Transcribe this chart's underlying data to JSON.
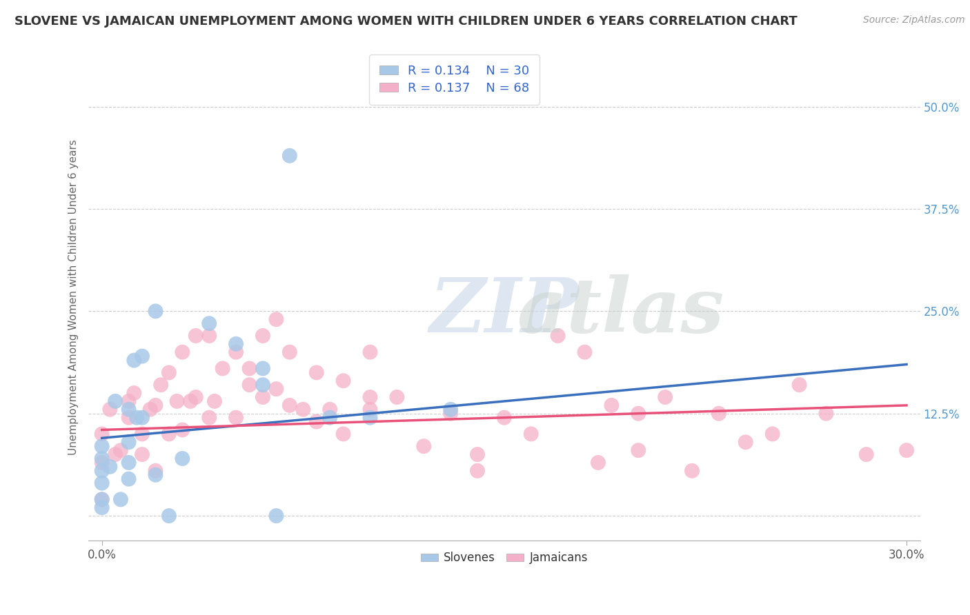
{
  "title": "SLOVENE VS JAMAICAN UNEMPLOYMENT AMONG WOMEN WITH CHILDREN UNDER 6 YEARS CORRELATION CHART",
  "source_text": "Source: ZipAtlas.com",
  "ylabel": "Unemployment Among Women with Children Under 6 years",
  "xlim": [
    -0.005,
    0.305
  ],
  "ylim": [
    -0.03,
    0.565
  ],
  "xtick_positions": [
    0.0,
    0.3
  ],
  "xtick_labels": [
    "0.0%",
    "30.0%"
  ],
  "ytick_vals": [
    0.0,
    0.125,
    0.25,
    0.375,
    0.5
  ],
  "ytick_labels": [
    "",
    "12.5%",
    "25.0%",
    "37.5%",
    "50.0%"
  ],
  "slovene_R": 0.134,
  "slovene_N": 30,
  "jamaican_R": 0.137,
  "jamaican_N": 68,
  "slovene_color": "#a8c8e8",
  "jamaican_color": "#f4b0c8",
  "slovene_line_color": "#3a6fbd",
  "jamaican_line_color": "#e8527a",
  "background_color": "#ffffff",
  "grid_color": "#cccccc",
  "title_color": "#333333",
  "slovene_x": [
    0.0,
    0.0,
    0.0,
    0.0,
    0.0,
    0.0,
    0.003,
    0.005,
    0.007,
    0.01,
    0.01,
    0.01,
    0.01,
    0.012,
    0.013,
    0.015,
    0.015,
    0.02,
    0.02,
    0.025,
    0.03,
    0.04,
    0.05,
    0.06,
    0.06,
    0.065,
    0.07,
    0.085,
    0.1,
    0.13
  ],
  "slovene_y": [
    0.085,
    0.07,
    0.055,
    0.04,
    0.02,
    0.01,
    0.06,
    0.14,
    0.02,
    0.13,
    0.09,
    0.065,
    0.045,
    0.19,
    0.12,
    0.195,
    0.12,
    0.25,
    0.05,
    0.0,
    0.07,
    0.235,
    0.21,
    0.18,
    0.16,
    0.0,
    0.44,
    0.12,
    0.12,
    0.13
  ],
  "jamaican_x": [
    0.0,
    0.0,
    0.0,
    0.003,
    0.005,
    0.007,
    0.01,
    0.01,
    0.012,
    0.015,
    0.015,
    0.018,
    0.02,
    0.02,
    0.022,
    0.025,
    0.025,
    0.028,
    0.03,
    0.03,
    0.033,
    0.035,
    0.035,
    0.04,
    0.04,
    0.042,
    0.045,
    0.05,
    0.05,
    0.055,
    0.055,
    0.06,
    0.06,
    0.065,
    0.065,
    0.07,
    0.07,
    0.075,
    0.08,
    0.08,
    0.085,
    0.09,
    0.09,
    0.1,
    0.1,
    0.1,
    0.11,
    0.12,
    0.13,
    0.14,
    0.14,
    0.15,
    0.16,
    0.17,
    0.18,
    0.185,
    0.19,
    0.2,
    0.2,
    0.21,
    0.22,
    0.23,
    0.24,
    0.25,
    0.26,
    0.27,
    0.285,
    0.3
  ],
  "jamaican_y": [
    0.1,
    0.065,
    0.02,
    0.13,
    0.075,
    0.08,
    0.14,
    0.12,
    0.15,
    0.1,
    0.075,
    0.13,
    0.135,
    0.055,
    0.16,
    0.1,
    0.175,
    0.14,
    0.2,
    0.105,
    0.14,
    0.22,
    0.145,
    0.22,
    0.12,
    0.14,
    0.18,
    0.2,
    0.12,
    0.16,
    0.18,
    0.22,
    0.145,
    0.24,
    0.155,
    0.2,
    0.135,
    0.13,
    0.175,
    0.115,
    0.13,
    0.165,
    0.1,
    0.145,
    0.2,
    0.13,
    0.145,
    0.085,
    0.125,
    0.075,
    0.055,
    0.12,
    0.1,
    0.22,
    0.2,
    0.065,
    0.135,
    0.125,
    0.08,
    0.145,
    0.055,
    0.125,
    0.09,
    0.1,
    0.16,
    0.125,
    0.075,
    0.08
  ],
  "slovene_trend_x": [
    0.0,
    0.3
  ],
  "slovene_trend_y": [
    0.095,
    0.185
  ],
  "jamaican_trend_x": [
    0.0,
    0.3
  ],
  "jamaican_trend_y": [
    0.105,
    0.135
  ]
}
